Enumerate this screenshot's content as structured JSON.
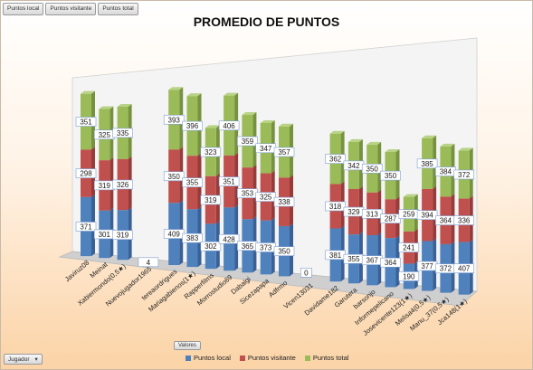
{
  "field_buttons": [
    "Puntos local",
    "Puntos visitante",
    "Puntos total"
  ],
  "valores_label": "Valores",
  "jugador_label": "Jugador",
  "dropdown_icon": "chevron-down-icon",
  "colors": {
    "local": "#4f81bd",
    "visitante": "#c0504d",
    "total": "#9bbb59"
  },
  "chart_data": {
    "type": "bar",
    "stacked": true,
    "three_d": true,
    "title": "PROMEDIO DE PUNTOS",
    "legend_position": "bottom",
    "categories": [
      "Javiruz08",
      "Meinat",
      "Xabiermondo(0,5★)",
      "Nuevojugador1965",
      "tereaordrigues",
      "Mariagabienos(1★)",
      "Rapperfilms",
      "Morrostudio69",
      "Dabalgi",
      "Sicezapapa",
      "Adfrmo",
      "Vicen13031",
      "Davidame182",
      "Garutera",
      "barsonjo",
      "Informepelicano",
      "Josevicente123(1★)",
      "Melisa4(0,5★)",
      "Manu_37(0,5★)",
      "Jca148(1★)"
    ],
    "groups": [
      [
        0,
        1,
        2
      ],
      [
        3
      ],
      [
        4,
        5,
        6,
        7,
        8,
        9,
        10
      ],
      [
        11
      ],
      [
        12,
        13,
        14,
        15,
        16,
        17,
        18,
        19
      ]
    ],
    "series": [
      {
        "name": "Puntos local",
        "values": [
          371,
          301,
          319,
          4,
          409,
          383,
          302,
          428,
          365,
          373,
          350,
          0,
          381,
          355,
          367,
          364,
          190,
          377,
          372,
          407
        ]
      },
      {
        "name": "Puntos visitante",
        "values": [
          298,
          319,
          326,
          0,
          350,
          355,
          319,
          351,
          353,
          325,
          338,
          0,
          318,
          329,
          313,
          287,
          241,
          394,
          364,
          336
        ]
      },
      {
        "name": "Puntos total",
        "values": [
          351,
          325,
          335,
          0,
          393,
          396,
          323,
          406,
          359,
          347,
          357,
          0,
          362,
          342,
          350,
          350,
          259,
          385,
          384,
          372
        ]
      }
    ]
  }
}
